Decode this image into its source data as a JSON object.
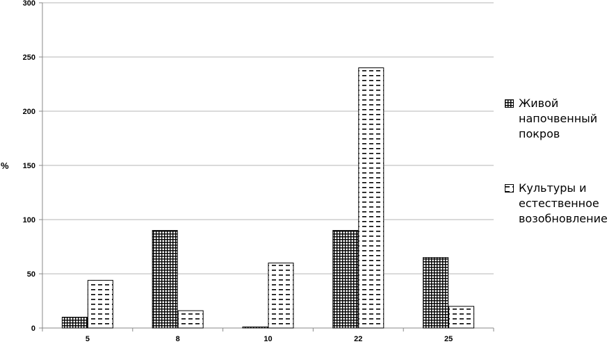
{
  "chart_data": {
    "type": "bar",
    "categories": [
      "5",
      "8",
      "10",
      "22",
      "25"
    ],
    "series": [
      {
        "name": "Живой\nнапочвенный\nпокров",
        "values": [
          10,
          90,
          1,
          90,
          65
        ],
        "pattern": "grid",
        "fill": "#000000"
      },
      {
        "name": "Культуры и\nестественное\nвозобновление",
        "values": [
          44,
          16,
          60,
          240,
          20
        ],
        "pattern": "dash",
        "fill": "#000000"
      }
    ],
    "ylabel": "%",
    "ylim": [
      0,
      300
    ],
    "yticks": [
      "0",
      "50",
      "100",
      "150",
      "200",
      "250",
      "300"
    ],
    "grid": true,
    "legend_position": "right"
  }
}
